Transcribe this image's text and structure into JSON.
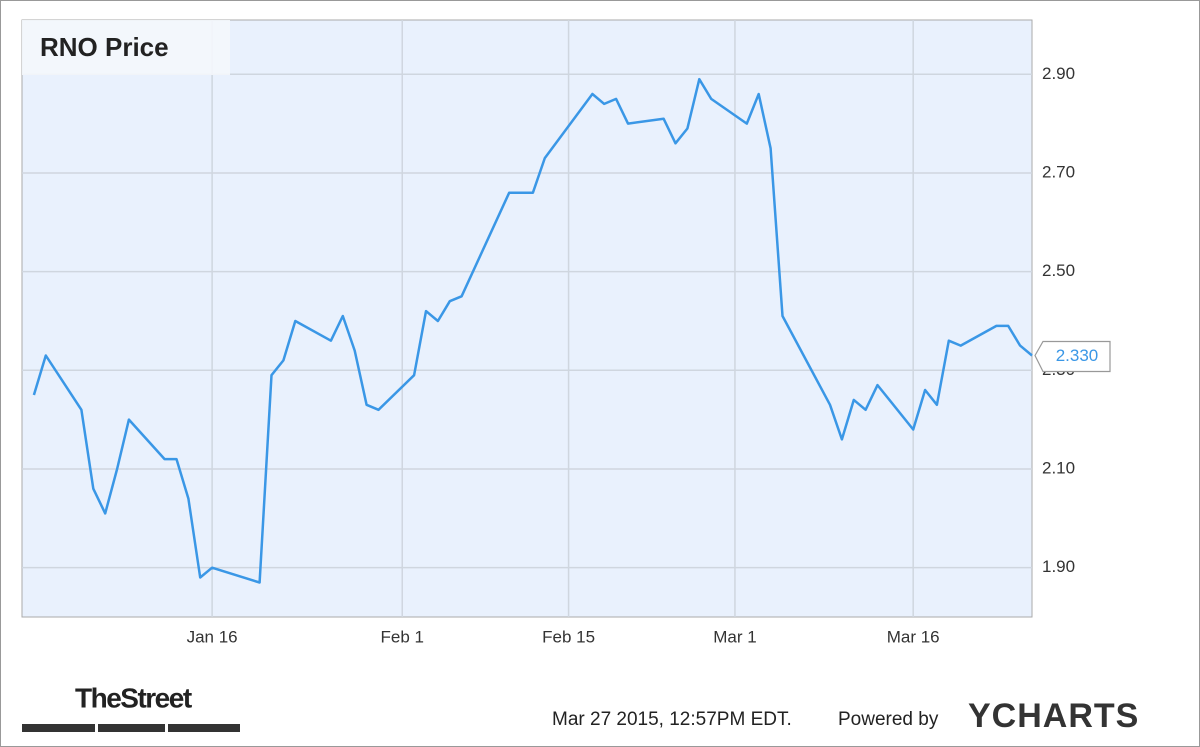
{
  "chart_data": {
    "type": "line",
    "title": "RNO Price",
    "color": "#3a97e6",
    "x": [
      "Jan 1",
      "Jan 2",
      "Jan 5",
      "Jan 6",
      "Jan 7",
      "Jan 8",
      "Jan 9",
      "Jan 12",
      "Jan 13",
      "Jan 14",
      "Jan 15",
      "Jan 16",
      "Jan 20",
      "Jan 21",
      "Jan 22",
      "Jan 23",
      "Jan 26",
      "Jan 27",
      "Jan 28",
      "Jan 29",
      "Jan 30",
      "Feb 2",
      "Feb 3",
      "Feb 4",
      "Feb 5",
      "Feb 6",
      "Feb 10",
      "Feb 12",
      "Feb 13",
      "Feb 17",
      "Feb 18",
      "Feb 19",
      "Feb 20",
      "Feb 23",
      "Feb 24",
      "Feb 25",
      "Feb 26",
      "Feb 27",
      "Mar 2",
      "Mar 3",
      "Mar 4",
      "Mar 5",
      "Mar 9",
      "Mar 10",
      "Mar 11",
      "Mar 12",
      "Mar 13",
      "Mar 16",
      "Mar 17",
      "Mar 18",
      "Mar 19",
      "Mar 20",
      "Mar 23",
      "Mar 24",
      "Mar 25",
      "Mar 26"
    ],
    "values": [
      2.25,
      2.33,
      2.22,
      2.06,
      2.01,
      2.1,
      2.2,
      2.12,
      2.12,
      2.04,
      1.88,
      1.9,
      1.87,
      2.29,
      2.32,
      2.4,
      2.36,
      2.41,
      2.34,
      2.23,
      2.22,
      2.29,
      2.42,
      2.4,
      2.44,
      2.45,
      2.66,
      2.66,
      2.73,
      2.86,
      2.84,
      2.85,
      2.8,
      2.81,
      2.76,
      2.79,
      2.89,
      2.85,
      2.8,
      2.86,
      2.75,
      2.41,
      2.23,
      2.16,
      2.24,
      2.22,
      2.27,
      2.18,
      2.26,
      2.23,
      2.36,
      2.35,
      2.39,
      2.39,
      2.35,
      2.33
    ],
    "value_labels": [
      null,
      null,
      null,
      null,
      null,
      null,
      null,
      null,
      null,
      null,
      null,
      null,
      null,
      null,
      null,
      null,
      null,
      null,
      null,
      null,
      null,
      null,
      null,
      null,
      null,
      null,
      null,
      null,
      null,
      null,
      null,
      null,
      null,
      null,
      null,
      null,
      null,
      null,
      null,
      null,
      null,
      null,
      null,
      null,
      null,
      null,
      null,
      null,
      null,
      null,
      null,
      null,
      null,
      null,
      null,
      "2.330"
    ],
    "xlim": [
      "Dec 31",
      "Mar 26"
    ],
    "xticks": [
      "Jan 16",
      "Feb 1",
      "Feb 15",
      "Mar 1",
      "Mar 16"
    ],
    "ylim": [
      1.8,
      3.01
    ],
    "yticks": [
      {
        "value": 1.9,
        "label": "1.90"
      },
      {
        "value": 2.1,
        "label": "2.10"
      },
      {
        "value": 2.3,
        "label": "2.30"
      },
      {
        "value": 2.5,
        "label": "2.50"
      },
      {
        "value": 2.7,
        "label": "2.70"
      },
      {
        "value": 2.9,
        "label": "2.90"
      }
    ],
    "grid": true
  },
  "footer": {
    "logo": "TheStreet",
    "timestamp": "Mar 27 2015, 12:57PM EDT.",
    "powered_by": "Powered by",
    "brand": "YCHARTS"
  }
}
